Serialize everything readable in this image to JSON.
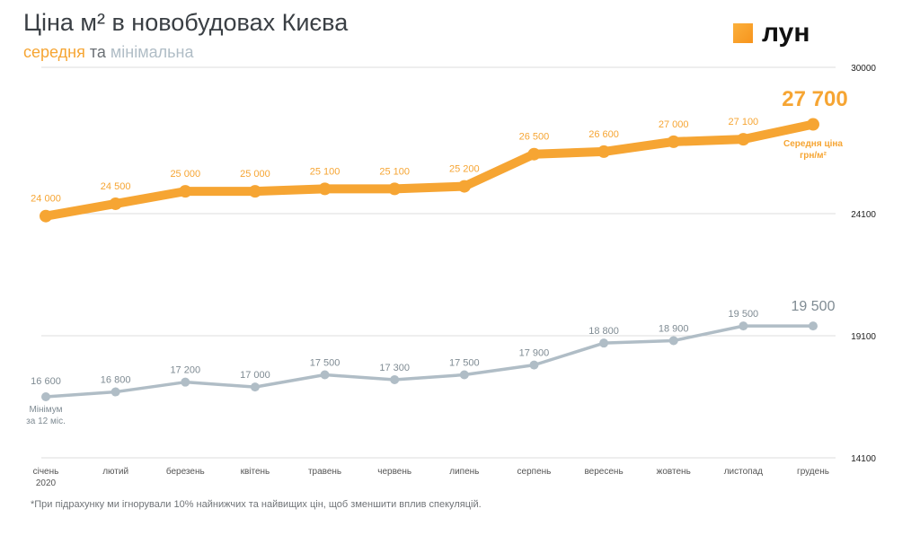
{
  "header": {
    "title": "Ціна м² в новобудовах Києва",
    "subtitle_avg": "середня",
    "subtitle_and": "та",
    "subtitle_min": "мінімальна",
    "logo_text": "лун"
  },
  "footnote": "*При підрахунку ми ігнорували 10% найнижчих та найвищих цін, щоб зменшити вплив спекуляцій.",
  "colors": {
    "average": "#f6a533",
    "minimum": "#b0bdc6",
    "grid": "#dddddd"
  },
  "chart_data": {
    "type": "line",
    "categories": [
      "січень",
      "лютий",
      "березень",
      "квітень",
      "травень",
      "червень",
      "липень",
      "серпень",
      "вересень",
      "жовтень",
      "листопад",
      "грудень"
    ],
    "first_category_sublabel": "2020",
    "y_ticks": [
      30000,
      24100,
      19100,
      14100
    ],
    "series": [
      {
        "key": "average",
        "values": [
          24000,
          24500,
          25000,
          25000,
          25100,
          25100,
          25200,
          26500,
          26600,
          27000,
          27100,
          27700
        ],
        "labels": [
          "24 000",
          "24 500",
          "25 000",
          "25 000",
          "25 100",
          "25 100",
          "25 200",
          "26 500",
          "26 600",
          "27 000",
          "27 100",
          ""
        ],
        "last_label": "27 700",
        "note": [
          "Середня ціна",
          "грн/м²"
        ]
      },
      {
        "key": "minimum",
        "values": [
          16600,
          16800,
          17200,
          17000,
          17500,
          17300,
          17500,
          17900,
          18800,
          18900,
          19500,
          19500
        ],
        "labels": [
          "16 600",
          "16 800",
          "17 200",
          "17 000",
          "17 500",
          "17 300",
          "17 500",
          "17 900",
          "18 800",
          "18 900",
          "19 500",
          ""
        ],
        "last_label": "19 500",
        "note": [
          "Мінімум",
          "за 12 міс."
        ]
      }
    ],
    "legend": "none",
    "grid": true
  }
}
